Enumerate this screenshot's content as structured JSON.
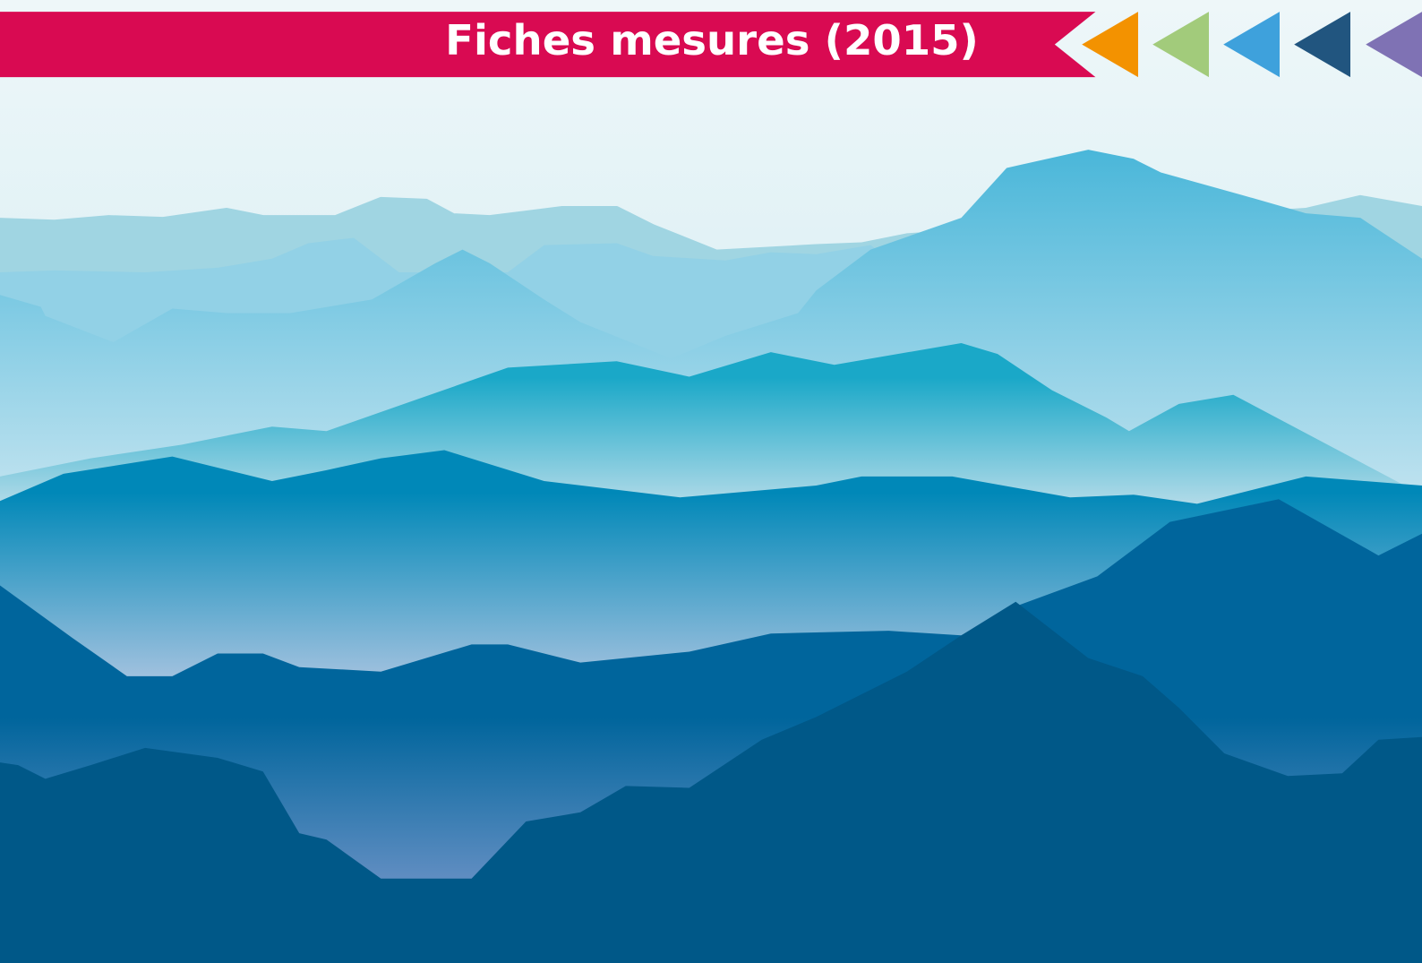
{
  "header": {
    "title": "Fiches mesures (2015)"
  }
}
